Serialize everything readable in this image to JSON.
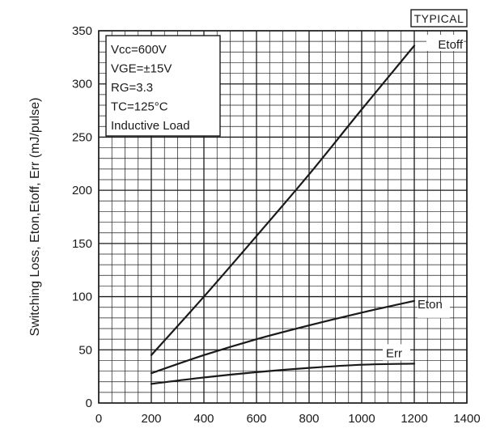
{
  "chart_data": {
    "type": "line",
    "badge": "TYPICAL",
    "ylabel": "Switching Loss, Eton,Etoff, Err (mJ/pulse)",
    "xlabel": "",
    "xlim": [
      0,
      1400
    ],
    "ylim": [
      0,
      350
    ],
    "x_ticks": [
      0,
      200,
      400,
      600,
      800,
      1000,
      1200,
      1400
    ],
    "y_ticks": [
      0,
      50,
      100,
      150,
      200,
      250,
      300,
      350
    ],
    "grid": true,
    "conditions": [
      "Vcc=600V",
      "VGE=±15V",
      "RG=3.3",
      "TC=125°C",
      "Inductive Load"
    ],
    "series": [
      {
        "name": "Etoff",
        "x": [
          200,
          400,
          600,
          800,
          1000,
          1200
        ],
        "values": [
          45,
          100,
          157,
          215,
          276,
          336
        ]
      },
      {
        "name": "Eton",
        "x": [
          200,
          400,
          600,
          800,
          1000,
          1200
        ],
        "values": [
          28,
          45,
          60,
          73,
          85,
          96
        ]
      },
      {
        "name": "Err",
        "x": [
          200,
          400,
          600,
          800,
          1000,
          1200
        ],
        "values": [
          18,
          24,
          29,
          33,
          36,
          37
        ]
      }
    ]
  }
}
